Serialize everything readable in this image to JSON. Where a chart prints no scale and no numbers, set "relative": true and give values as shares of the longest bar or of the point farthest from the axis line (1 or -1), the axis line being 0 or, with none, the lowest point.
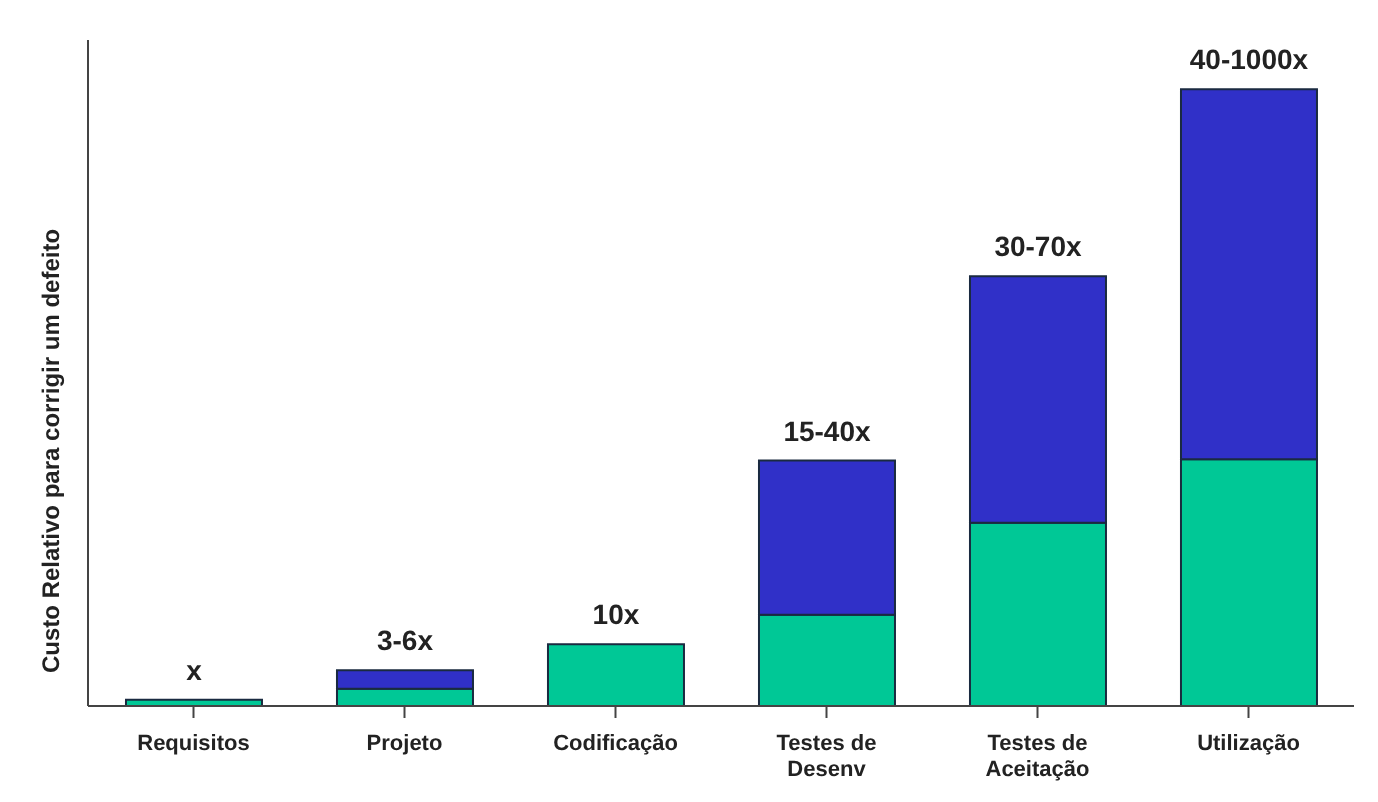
{
  "chart_data": {
    "type": "bar",
    "stacked": true,
    "relative": true,
    "ylabel": "Custo Relativo para corrigir um defeito",
    "categories": [
      "Requisitos",
      "Projeto",
      "Codificação",
      "Testes de Desenv",
      "Testes de Aceitação",
      "Utilização"
    ],
    "series": [
      {
        "color": "#00c896",
        "values": [
          0.01,
          0.028,
          0.1,
          0.148,
          0.297,
          0.4
        ]
      },
      {
        "color": "#3030c8",
        "values": [
          null,
          0.03,
          null,
          0.25,
          0.4,
          0.6
        ]
      }
    ],
    "totals": [
      "x",
      "3-6x",
      "10x",
      "15-40x",
      "30-70x",
      "40-1000x"
    ],
    "legend": false,
    "grid": false
  }
}
